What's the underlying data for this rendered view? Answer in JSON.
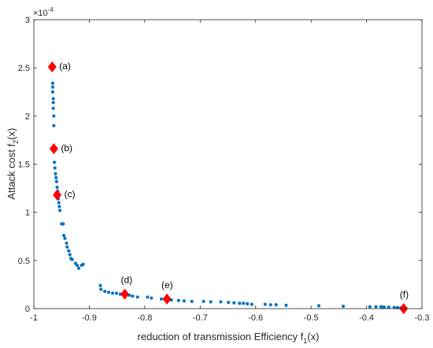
{
  "chart_data": {
    "type": "scatter",
    "title": "",
    "xlabel": {
      "main": "reduction of transmission Efficiency  f",
      "sub": "1",
      "tail": "(x)"
    },
    "ylabel": {
      "main": "Attack cost f",
      "sub": "2",
      "tail": "(x)"
    },
    "y_multiplier": {
      "base": "×10",
      "exp": "-4"
    },
    "xlim": [
      -1,
      -0.3
    ],
    "ylim": [
      0,
      3
    ],
    "xticks": [
      -1,
      -0.9,
      -0.8,
      -0.7,
      -0.6,
      -0.5,
      -0.4,
      -0.3
    ],
    "xtick_labels": [
      "-1",
      "-0.9",
      "-0.8",
      "-0.7",
      "-0.6",
      "-0.5",
      "-0.4",
      "-0.3"
    ],
    "yticks": [
      0,
      0.5,
      1,
      1.5,
      2,
      2.5,
      3
    ],
    "ytick_labels": [
      "0",
      "0.5",
      "1",
      "1.5",
      "2",
      "2.5",
      "3"
    ],
    "grid": false,
    "series": [
      {
        "points": [
          [
            -0.966,
            2.34
          ],
          [
            -0.966,
            2.3
          ],
          [
            -0.966,
            2.25
          ],
          [
            -0.965,
            2.18
          ],
          [
            -0.965,
            2.14
          ],
          [
            -0.965,
            2.08
          ],
          [
            -0.964,
            2.0
          ],
          [
            -0.964,
            1.9
          ],
          [
            -0.963,
            1.52
          ],
          [
            -0.962,
            1.46
          ],
          [
            -0.961,
            1.4
          ],
          [
            -0.96,
            1.36
          ],
          [
            -0.959,
            1.32
          ],
          [
            -0.958,
            1.26
          ],
          [
            -0.957,
            1.22
          ],
          [
            -0.956,
            1.14
          ],
          [
            -0.955,
            1.1
          ],
          [
            -0.954,
            1.06
          ],
          [
            -0.953,
            1.02
          ],
          [
            -0.95,
            0.88
          ],
          [
            -0.947,
            0.88
          ],
          [
            -0.946,
            0.76
          ],
          [
            -0.944,
            0.73
          ],
          [
            -0.941,
            0.68
          ],
          [
            -0.94,
            0.64
          ],
          [
            -0.937,
            0.6
          ],
          [
            -0.935,
            0.56
          ],
          [
            -0.933,
            0.52
          ],
          [
            -0.931,
            0.51
          ],
          [
            -0.925,
            0.47
          ],
          [
            -0.922,
            0.45
          ],
          [
            -0.919,
            0.42
          ],
          [
            -0.914,
            0.45
          ],
          [
            -0.911,
            0.46
          ],
          [
            -0.88,
            0.24
          ],
          [
            -0.879,
            0.2
          ],
          [
            -0.872,
            0.18
          ],
          [
            -0.865,
            0.17
          ],
          [
            -0.858,
            0.16
          ],
          [
            -0.851,
            0.16
          ],
          [
            -0.844,
            0.15
          ],
          [
            -0.828,
            0.14
          ],
          [
            -0.822,
            0.13
          ],
          [
            -0.813,
            0.12
          ],
          [
            -0.795,
            0.12
          ],
          [
            -0.788,
            0.11
          ],
          [
            -0.77,
            0.1
          ],
          [
            -0.752,
            0.09
          ],
          [
            -0.739,
            0.085
          ],
          [
            -0.729,
            0.08
          ],
          [
            -0.715,
            0.075
          ],
          [
            -0.694,
            0.075
          ],
          [
            -0.681,
            0.07
          ],
          [
            -0.663,
            0.07
          ],
          [
            -0.649,
            0.065
          ],
          [
            -0.639,
            0.06
          ],
          [
            -0.629,
            0.055
          ],
          [
            -0.622,
            0.055
          ],
          [
            -0.615,
            0.05
          ],
          [
            -0.607,
            0.045
          ],
          [
            -0.583,
            0.045
          ],
          [
            -0.573,
            0.04
          ],
          [
            -0.563,
            0.04
          ],
          [
            -0.545,
            0.035
          ],
          [
            -0.486,
            0.03
          ],
          [
            -0.442,
            0.025
          ],
          [
            -0.394,
            0.02
          ],
          [
            -0.383,
            0.02
          ],
          [
            -0.374,
            0.02
          ],
          [
            -0.371,
            0.015
          ],
          [
            -0.368,
            0.015
          ],
          [
            -0.36,
            0.015
          ],
          [
            -0.35,
            0.012
          ],
          [
            -0.344,
            0.01
          ],
          [
            -0.338,
            0.008
          ]
        ],
        "color": "#0072BD"
      },
      {
        "points": [
          [
            -0.967,
            2.51,
            "(a)"
          ],
          [
            -0.964,
            1.66,
            "(b)"
          ],
          [
            -0.958,
            1.18,
            "(c)"
          ],
          [
            -0.836,
            0.15,
            "(d)"
          ],
          [
            -0.76,
            0.1,
            "(e)"
          ],
          [
            -0.333,
            0.0,
            "(f)"
          ]
        ],
        "marker": "diamond",
        "color": "#FF0000"
      }
    ]
  }
}
